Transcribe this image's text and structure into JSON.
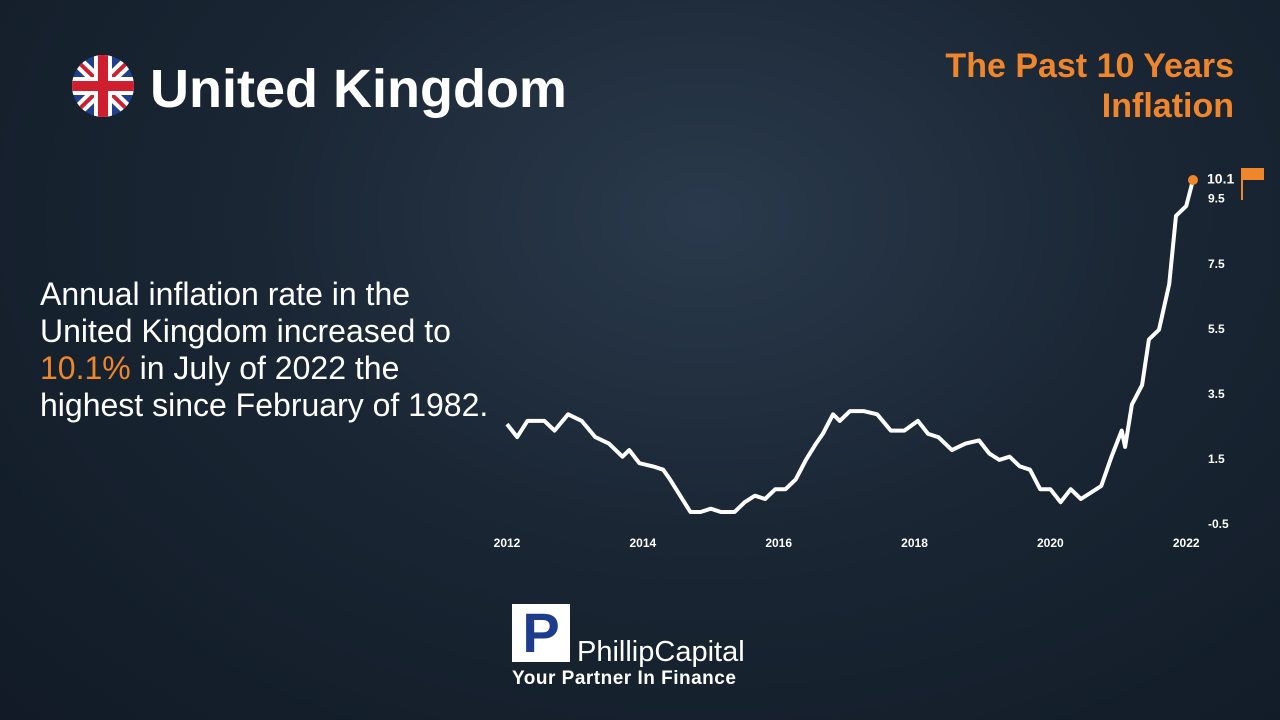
{
  "header": {
    "title": "United Kingdom",
    "subtitle": "The Past 10 Years Inflation"
  },
  "description": [
    "Annual inflation rate in the United Kingdom increased to ",
    "10.1%",
    " in July of 2022 the highest since February of 1982."
  ],
  "logo": {
    "letter": "P",
    "name": "PhillipCapital",
    "tagline": "Your Partner In Finance"
  },
  "chart_data": {
    "type": "line",
    "x": [
      2012.0,
      2012.15,
      2012.3,
      2012.55,
      2012.7,
      2012.9,
      2013.1,
      2013.3,
      2013.5,
      2013.7,
      2013.8,
      2013.95,
      2014.15,
      2014.3,
      2014.4,
      2014.55,
      2014.7,
      2014.85,
      2015.0,
      2015.15,
      2015.35,
      2015.5,
      2015.65,
      2015.8,
      2015.95,
      2016.1,
      2016.25,
      2016.4,
      2016.55,
      2016.65,
      2016.8,
      2016.9,
      2017.05,
      2017.25,
      2017.45,
      2017.65,
      2017.85,
      2018.05,
      2018.2,
      2018.35,
      2018.55,
      2018.75,
      2018.95,
      2019.1,
      2019.25,
      2019.4,
      2019.55,
      2019.7,
      2019.85,
      2020.0,
      2020.15,
      2020.3,
      2020.45,
      2020.6,
      2020.75,
      2020.9,
      2021.05,
      2021.1,
      2021.2,
      2021.35,
      2021.45,
      2021.6,
      2021.75,
      2021.85,
      2022.0,
      2022.1
    ],
    "values": [
      2.6,
      2.2,
      2.7,
      2.7,
      2.4,
      2.9,
      2.7,
      2.2,
      2.0,
      1.6,
      1.8,
      1.4,
      1.3,
      1.2,
      0.9,
      0.4,
      -0.1,
      -0.1,
      0.0,
      -0.1,
      -0.1,
      0.2,
      0.4,
      0.3,
      0.6,
      0.6,
      0.9,
      1.5,
      2.0,
      2.3,
      2.9,
      2.7,
      3.0,
      3.0,
      2.9,
      2.4,
      2.4,
      2.7,
      2.3,
      2.2,
      1.8,
      2.0,
      2.1,
      1.7,
      1.5,
      1.6,
      1.3,
      1.2,
      0.6,
      0.6,
      0.2,
      0.6,
      0.3,
      0.5,
      0.7,
      1.6,
      2.4,
      1.9,
      3.2,
      3.8,
      5.2,
      5.5,
      6.9,
      9.0,
      9.3,
      10.1
    ],
    "color": "#ffffff",
    "marker_color": "#f0862b",
    "xlim": [
      2012,
      2022.1
    ],
    "xticks": [
      2012,
      2014,
      2016,
      2018,
      2020,
      2022
    ],
    "ylim": [
      -0.5,
      10.5
    ],
    "yticks": [
      9.5,
      7.5,
      5.5,
      3.5,
      1.5,
      -0.5
    ]
  }
}
